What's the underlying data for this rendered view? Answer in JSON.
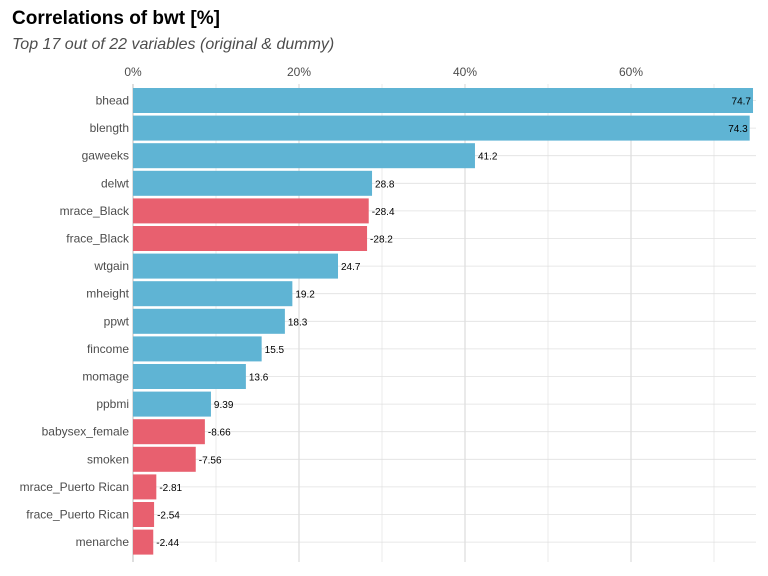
{
  "chart_data": {
    "type": "bar",
    "orientation": "horizontal",
    "title": "Correlations of bwt [%]",
    "subtitle": "Top 17 out of 22 variables (original & dummy)",
    "xlabel": "",
    "ylabel": "",
    "xlim": [
      0,
      75
    ],
    "x_ticks": [
      0,
      20,
      40,
      60
    ],
    "x_tick_labels": [
      "0%",
      "20%",
      "40%",
      "60%"
    ],
    "grid": true,
    "colors": {
      "positive": "#5fb4d4",
      "negative": "#e8606f"
    },
    "categories": [
      "bhead",
      "blength",
      "gaweeks",
      "delwt",
      "mrace_Black",
      "frace_Black",
      "wtgain",
      "mheight",
      "ppwt",
      "fincome",
      "momage",
      "ppbmi",
      "babysex_female",
      "smoken",
      "mrace_Puerto Rican",
      "frace_Puerto Rican",
      "menarche"
    ],
    "values": [
      74.7,
      74.3,
      41.2,
      28.8,
      -28.4,
      -28.2,
      24.7,
      19.2,
      18.3,
      15.5,
      13.6,
      9.39,
      -8.66,
      -7.56,
      -2.81,
      -2.54,
      -2.44
    ],
    "value_labels": [
      "74.7",
      "74.3",
      "41.2",
      "28.8",
      "-28.4",
      "-28.2",
      "24.7",
      "19.2",
      "18.3",
      "15.5",
      "13.6",
      "9.39",
      "-8.66",
      "-7.56",
      "-2.81",
      "-2.54",
      "-2.44"
    ]
  }
}
